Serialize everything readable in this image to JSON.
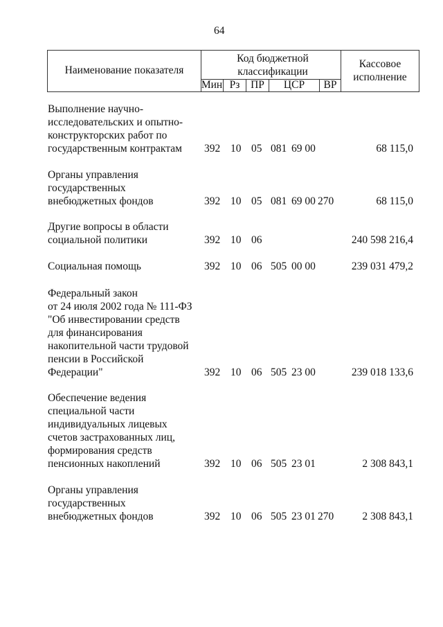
{
  "page_number": "64",
  "header": {
    "name": "Наименование показателя",
    "code_group": "Код бюджетной классификации",
    "min": "Мин",
    "rz": "Рз",
    "pr": "ПР",
    "csr": "ЦСР",
    "vr": "ВР",
    "amount": "Кассовое исполнение"
  },
  "rows": [
    {
      "name": "Выполнение научно-\nисследовательских и опытно-\nконструкторских работ по\nгосударственным контрактам",
      "min": "392",
      "rz": "10",
      "pr": "05",
      "csr1": "081",
      "csr2": "69 00",
      "vr": "",
      "amount": "68 115,0"
    },
    {
      "name": "Органы управления\nгосударственных\nвнебюджетных фондов",
      "min": "392",
      "rz": "10",
      "pr": "05",
      "csr1": "081",
      "csr2": "69 00",
      "vr": "270",
      "amount": "68 115,0"
    },
    {
      "name": "Другие вопросы в области\nсоциальной политики",
      "min": "392",
      "rz": "10",
      "pr": "06",
      "csr1": "",
      "csr2": "",
      "vr": "",
      "amount": "240 598 216,4"
    },
    {
      "name": "Социальная помощь",
      "min": "392",
      "rz": "10",
      "pr": "06",
      "csr1": "505",
      "csr2": "00 00",
      "vr": "",
      "amount": "239 031 479,2"
    },
    {
      "name": "Федеральный закон\nот 24 июля 2002 года № 111-ФЗ\n\"Об инвестировании средств\nдля финансирования\nнакопительной части трудовой\nпенсии в Российской\nФедерации\"",
      "min": "392",
      "rz": "10",
      "pr": "06",
      "csr1": "505",
      "csr2": "23 00",
      "vr": "",
      "amount": "239 018 133,6"
    },
    {
      "name": "Обеспечение ведения\nспециальной части\nиндивидуальных лицевых\nсчетов застрахованных лиц,\nформирования средств\nпенсионных накоплений",
      "min": "392",
      "rz": "10",
      "pr": "06",
      "csr1": "505",
      "csr2": "23 01",
      "vr": "",
      "amount": "2 308 843,1"
    },
    {
      "name": "Органы управления\nгосударственных\nвнебюджетных фондов",
      "min": "392",
      "rz": "10",
      "pr": "06",
      "csr1": "505",
      "csr2": "23 01",
      "vr": "270",
      "amount": "2 308 843,1"
    }
  ]
}
